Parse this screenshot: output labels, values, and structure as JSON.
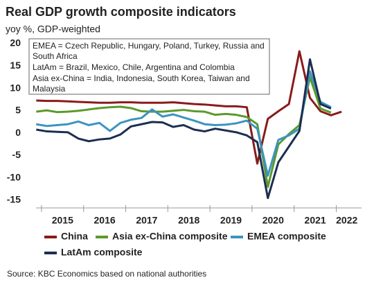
{
  "chart_data": {
    "type": "line",
    "title": "Real GDP growth composite indicators",
    "subtitle": "yoy %, GDP-weighted",
    "annotation": [
      "EMEA = Czech Republic, Hungary, Poland, Turkey, Russia and",
      "South Africa",
      "LatAm = Brazil, Mexico, Chile, Argentina and Colombia",
      "Asia ex-China = India, Indonesia, South Korea, Taiwan and",
      "Malaysia"
    ],
    "source": "Source: KBC Economics based on national authorities",
    "x": [
      2014.875,
      2015.125,
      2015.375,
      2015.625,
      2015.875,
      2016.125,
      2016.375,
      2016.625,
      2016.875,
      2017.125,
      2017.375,
      2017.625,
      2017.875,
      2018.125,
      2018.375,
      2018.625,
      2018.875,
      2019.125,
      2019.375,
      2019.625,
      2019.875,
      2020.125,
      2020.375,
      2020.625,
      2020.875,
      2021.125,
      2021.375,
      2021.625,
      2021.875,
      2022.125
    ],
    "series": [
      {
        "name": "China",
        "color": "#8b1a1a",
        "values": [
          7.3,
          7.2,
          7.2,
          7.1,
          7.0,
          6.9,
          6.8,
          6.8,
          6.9,
          6.9,
          6.8,
          6.8,
          6.8,
          6.9,
          6.7,
          6.5,
          6.4,
          6.2,
          6.0,
          6.0,
          5.8,
          -6.8,
          3.2,
          4.9,
          6.5,
          18.3,
          7.9,
          4.9,
          4.0,
          4.8
        ]
      },
      {
        "name": "Asia ex-China composite",
        "color": "#5a9a2a",
        "values": [
          4.8,
          5.1,
          4.7,
          4.8,
          5.0,
          5.3,
          5.6,
          5.8,
          5.9,
          5.6,
          4.9,
          4.8,
          4.8,
          5.0,
          5.2,
          4.9,
          4.8,
          4.1,
          4.3,
          4.1,
          3.6,
          2.0,
          -12.0,
          -2.5,
          -0.2,
          1.8,
          12.5,
          5.5,
          4.6,
          null
        ]
      },
      {
        "name": "EMEA composite",
        "color": "#3c93c2",
        "values": [
          2.0,
          1.6,
          1.8,
          2.0,
          2.6,
          1.8,
          2.3,
          0.5,
          2.3,
          3.0,
          3.4,
          5.3,
          3.7,
          4.2,
          3.5,
          2.8,
          2.0,
          1.8,
          1.9,
          2.2,
          2.8,
          1.0,
          -9.5,
          -1.5,
          -0.5,
          1.0,
          13.8,
          7.0,
          5.8,
          null
        ]
      },
      {
        "name": "LatAm composite",
        "color": "#1c2e50",
        "values": [
          0.8,
          0.4,
          0.3,
          0.2,
          -1.2,
          -1.8,
          -1.4,
          -1.2,
          -0.3,
          1.5,
          2.0,
          2.5,
          2.4,
          1.4,
          1.8,
          0.8,
          0.4,
          1.0,
          0.6,
          0.2,
          -0.5,
          -2.0,
          -14.5,
          -6.5,
          -3.0,
          0.5,
          16.5,
          6.5,
          5.5,
          null
        ]
      }
    ],
    "xlim": [
      2014.87,
      2022.6
    ],
    "xticks": [
      {
        "value": 2015.5,
        "label": "2015"
      },
      {
        "value": 2016.5,
        "label": "2016"
      },
      {
        "value": 2017.5,
        "label": "2017"
      },
      {
        "value": 2018.5,
        "label": "2018"
      },
      {
        "value": 2019.5,
        "label": "2019"
      },
      {
        "value": 2020.5,
        "label": "2020"
      },
      {
        "value": 2021.5,
        "label": "2021"
      },
      {
        "value": 2022.25,
        "label": "2022"
      }
    ],
    "ylim": [
      -15,
      20
    ],
    "yticks": [
      -15,
      -10,
      -5,
      0,
      5,
      10,
      15,
      20
    ]
  }
}
